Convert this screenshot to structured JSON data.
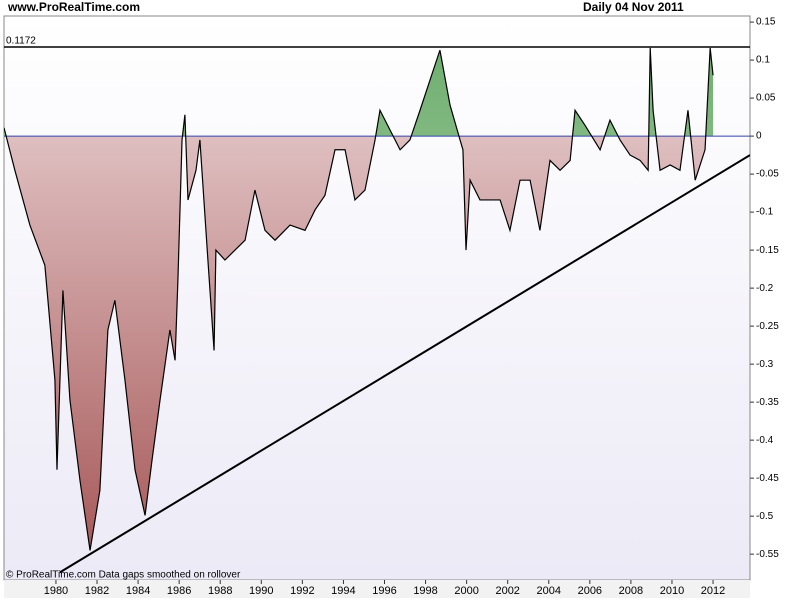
{
  "chart_data": {
    "type": "line",
    "site": "www.ProRealTime.com",
    "period": "Daily  04 Nov 2011",
    "footer": "© ProRealTime.com  Data gaps smoothed on rollover",
    "x": [
      1977.47,
      1978.0,
      1978.73,
      1979.46,
      1979.95,
      1980.05,
      1980.34,
      1980.68,
      1981.17,
      1981.66,
      1982.14,
      1982.53,
      1982.87,
      1983.36,
      1983.85,
      1984.34,
      1984.68,
      1985.07,
      1985.55,
      1985.8,
      1985.94,
      1986.14,
      1986.28,
      1986.43,
      1986.82,
      1987.01,
      1987.4,
      1987.7,
      1987.79,
      1988.23,
      1988.72,
      1989.21,
      1989.69,
      1990.18,
      1990.67,
      1991.4,
      1992.13,
      1992.62,
      1993.1,
      1993.59,
      1994.08,
      1994.56,
      1995.05,
      1995.54,
      1995.78,
      1996.27,
      1996.76,
      1997.24,
      1997.73,
      1998.22,
      1998.7,
      1999.19,
      1999.68,
      1999.82,
      1999.97,
      2000.17,
      2000.65,
      2001.14,
      2001.63,
      2002.11,
      2002.6,
      2003.09,
      2003.57,
      2004.06,
      2004.55,
      2005.04,
      2005.28,
      2005.77,
      2006.5,
      2006.98,
      2007.47,
      2007.96,
      2008.45,
      2008.84,
      2008.94,
      2009.08,
      2009.42,
      2009.91,
      2010.39,
      2010.78,
      2011.13,
      2011.61,
      2011.86,
      2012.0
    ],
    "series": [
      {
        "color": "#000000",
        "values": [
          0.011,
          -0.045,
          -0.117,
          -0.17,
          -0.321,
          -0.439,
          -0.203,
          -0.347,
          -0.453,
          -0.545,
          -0.466,
          -0.255,
          -0.216,
          -0.321,
          -0.439,
          -0.499,
          -0.426,
          -0.347,
          -0.255,
          -0.295,
          -0.189,
          -0.005,
          0.028,
          -0.084,
          -0.045,
          -0.005,
          -0.163,
          -0.282,
          -0.15,
          -0.163,
          -0.15,
          -0.137,
          -0.071,
          -0.124,
          -0.137,
          -0.117,
          -0.124,
          -0.097,
          -0.078,
          -0.018,
          -0.018,
          -0.084,
          -0.071,
          -0.005,
          0.034,
          0.008,
          -0.018,
          -0.005,
          0.034,
          0.074,
          0.113,
          0.041,
          -0.005,
          -0.018,
          -0.15,
          -0.058,
          -0.084,
          -0.084,
          -0.084,
          -0.124,
          -0.058,
          -0.058,
          -0.124,
          -0.032,
          -0.045,
          -0.032,
          0.034,
          0.014,
          -0.018,
          0.021,
          -0.005,
          -0.025,
          -0.032,
          -0.045,
          0.116,
          0.034,
          -0.045,
          -0.038,
          -0.045,
          0.034,
          -0.058,
          -0.018,
          0.116,
          0.08
        ]
      }
    ],
    "fill_above": "#8fc48f",
    "fill_below": "#a85a5a",
    "hlines": [
      {
        "value": 0,
        "color": "#3344aa"
      },
      {
        "value": 0.1172,
        "color": "#000000"
      }
    ],
    "trendline": {
      "x": [
        1980.19,
        2013.8
      ],
      "values": [
        -0.574,
        -0.025
      ],
      "color": "#000000"
    },
    "xlim": [
      1977.47,
      2013.8
    ],
    "ylim": [
      -0.584,
      0.158
    ],
    "xticks": [
      1980,
      1982,
      1984,
      1986,
      1988,
      1990,
      1992,
      1994,
      1996,
      1998,
      2000,
      2002,
      2004,
      2006,
      2008,
      2010,
      2012
    ],
    "yticks": [
      0.15,
      0.1,
      0.05,
      0,
      -0.05,
      -0.1,
      -0.15,
      -0.2,
      -0.25,
      -0.3,
      -0.35,
      -0.4,
      -0.45,
      -0.5,
      -0.55
    ]
  }
}
